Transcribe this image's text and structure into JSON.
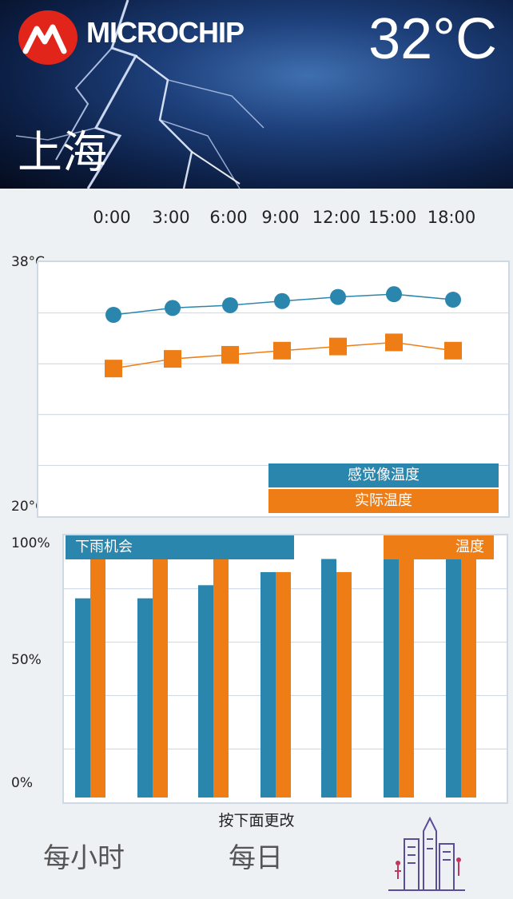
{
  "header": {
    "brand": "MICROCHIP",
    "temperature": "32°C",
    "city": "上海",
    "logo_icon": "microchip-logo-icon",
    "background_icon": "lightning-storm"
  },
  "times": [
    "0:00",
    "3:00",
    "6:00",
    "9:00",
    "12:00",
    "15:00",
    "18:00"
  ],
  "chart_data": [
    {
      "type": "line",
      "x": [
        "0:00",
        "3:00",
        "6:00",
        "9:00",
        "12:00",
        "15:00",
        "18:00"
      ],
      "ylim": [
        20,
        38
      ],
      "ytick_labels": [
        "38°C",
        "20°C"
      ],
      "series": [
        {
          "name": "感觉像温度",
          "color": "#2b86ad",
          "values": [
            34.4,
            34.9,
            35.1,
            35.4,
            35.7,
            35.9,
            35.5
          ]
        },
        {
          "name": "实际温度",
          "color": "#ef7d15",
          "values": [
            30.5,
            31.2,
            31.5,
            31.8,
            32.1,
            32.4,
            31.8
          ]
        }
      ],
      "grid": true,
      "legend": "bottom-right"
    },
    {
      "type": "bar",
      "categories": [
        "0:00",
        "3:00",
        "6:00",
        "9:00",
        "12:00",
        "15:00",
        "18:00"
      ],
      "ylim": [
        0,
        100
      ],
      "ytick_labels": [
        "100%",
        "50%",
        "0%"
      ],
      "series": [
        {
          "name": "下雨机会",
          "color": "#2b86ad",
          "values": [
            76,
            76,
            81,
            86,
            91,
            98,
            98
          ]
        },
        {
          "name": "温度",
          "color": "#ef7d15",
          "values": [
            91,
            91,
            91,
            86,
            86,
            98,
            98
          ]
        }
      ],
      "grid": true,
      "legend": "top"
    }
  ],
  "footer": {
    "hint": "按下面更改",
    "hourly_label": "每小时",
    "daily_label": "每日",
    "city_icon": "city-skyline-icon"
  },
  "colors": {
    "blue": "#2b86ad",
    "orange": "#ef7d15",
    "grid": "#c9d6e3"
  }
}
